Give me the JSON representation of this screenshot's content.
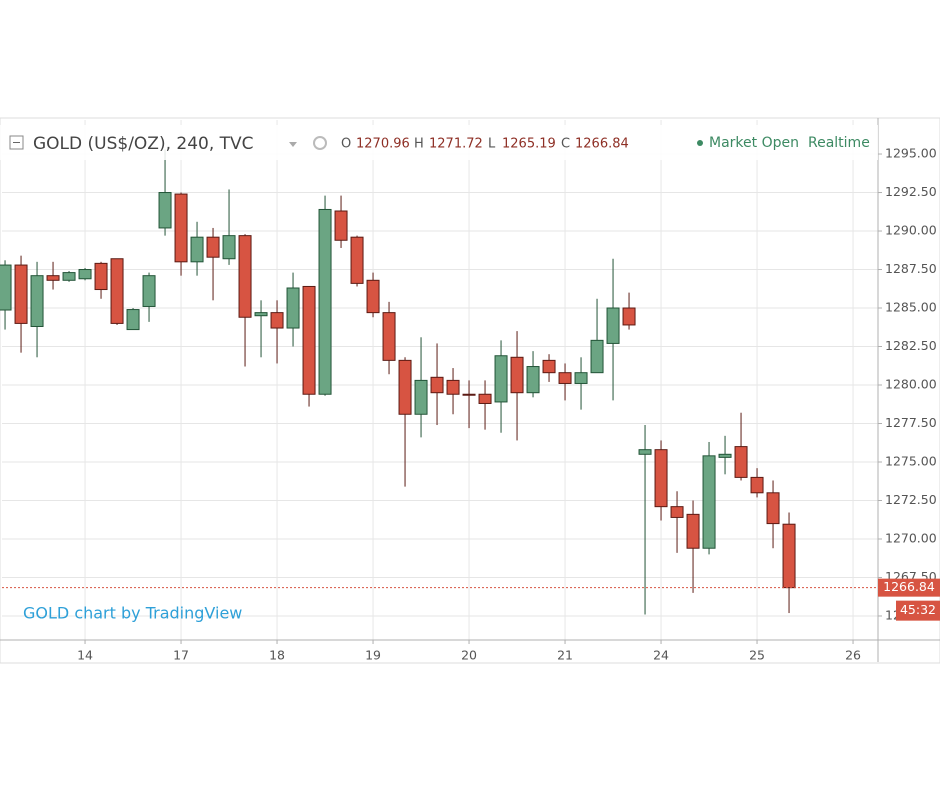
{
  "chart_data": {
    "type": "candlestick",
    "title": "GOLD (US$/OZ), 240, TVC",
    "ohlc_labels": [
      "O",
      "H",
      "L",
      "C"
    ],
    "status": "Market Open",
    "feed": "Realtime",
    "watermark": "GOLD chart by TradingView",
    "countdown": "45:32",
    "up_color": "#6ba583",
    "down_color": "#d75442",
    "grid": true,
    "x": [
      0,
      1,
      2,
      3,
      4,
      5,
      6,
      7,
      8,
      9,
      10,
      11,
      12,
      13,
      14,
      15,
      16,
      17,
      18,
      19,
      20,
      21,
      22,
      23,
      24,
      25,
      26,
      27,
      28,
      29,
      30,
      31,
      32,
      33,
      34,
      35,
      36,
      37,
      38,
      39,
      40,
      41,
      42,
      43,
      44,
      45,
      46,
      47,
      48,
      49
    ],
    "open": [
      1284.87,
      1287.79,
      1283.8,
      1287.1,
      1286.8,
      1286.9,
      1287.9,
      1288.2,
      1283.6,
      1285.1,
      1290.2,
      1292.4,
      1288.0,
      1289.6,
      1288.2,
      1289.7,
      1284.5,
      1284.7,
      1283.7,
      1286.4,
      1279.4,
      1291.3,
      1289.6,
      1286.8,
      1284.7,
      1281.6,
      1278.1,
      1280.5,
      1280.3,
      1279.4,
      1279.4,
      1278.9,
      1281.8,
      1279.5,
      1281.6,
      1280.8,
      1280.1,
      1280.8,
      1282.7,
      1285.0,
      1275.5,
      1275.8,
      1272.1,
      1271.6,
      1269.4,
      1275.3,
      1276.0,
      1274.0,
      1273.0,
      1270.96
    ],
    "high": [
      1288.1,
      1288.4,
      1288.0,
      1288.0,
      1287.4,
      1287.6,
      1288.0,
      1288.2,
      1285.0,
      1287.3,
      1295.3,
      1292.5,
      1290.6,
      1290.2,
      1292.7,
      1289.8,
      1285.5,
      1285.5,
      1287.3,
      1286.4,
      1292.3,
      1292.3,
      1289.7,
      1287.3,
      1285.4,
      1281.8,
      1283.1,
      1282.7,
      1281.1,
      1280.3,
      1280.3,
      1282.9,
      1283.5,
      1282.2,
      1282.0,
      1281.4,
      1281.8,
      1285.6,
      1288.2,
      1286.0,
      1277.4,
      1276.4,
      1273.1,
      1272.5,
      1276.3,
      1276.7,
      1278.2,
      1274.6,
      1273.8,
      1271.72
    ],
    "low": [
      1283.6,
      1282.1,
      1281.8,
      1286.2,
      1286.7,
      1286.8,
      1285.6,
      1283.9,
      1283.6,
      1284.1,
      1289.7,
      1287.1,
      1287.1,
      1285.5,
      1287.8,
      1281.2,
      1281.8,
      1281.4,
      1282.5,
      1278.6,
      1279.3,
      1288.9,
      1286.4,
      1284.4,
      1280.7,
      1273.4,
      1276.6,
      1277.4,
      1278.1,
      1277.2,
      1277.1,
      1276.9,
      1276.4,
      1279.2,
      1280.2,
      1279.0,
      1278.4,
      1280.8,
      1279.0,
      1283.6,
      1265.1,
      1271.2,
      1269.1,
      1266.5,
      1269.0,
      1274.2,
      1273.8,
      1272.7,
      1269.4,
      1265.19
    ],
    "close": [
      1287.79,
      1284.0,
      1287.1,
      1286.8,
      1287.3,
      1287.5,
      1286.2,
      1284.0,
      1284.9,
      1287.1,
      1292.5,
      1288.0,
      1289.6,
      1288.3,
      1289.7,
      1284.4,
      1284.7,
      1283.7,
      1286.3,
      1279.4,
      1291.4,
      1289.4,
      1286.6,
      1284.7,
      1281.6,
      1278.1,
      1280.3,
      1279.5,
      1279.4,
      1279.35,
      1278.8,
      1281.9,
      1279.5,
      1281.2,
      1280.8,
      1280.1,
      1280.8,
      1282.9,
      1285.0,
      1283.9,
      1275.8,
      1272.1,
      1271.4,
      1269.4,
      1275.4,
      1275.5,
      1274.0,
      1273.0,
      1271.0,
      1266.84
    ],
    "xlim": [
      -0.19,
      54.56
    ],
    "xticks": [
      {
        "value": 5,
        "label": "14"
      },
      {
        "value": 11,
        "label": "17"
      },
      {
        "value": 17,
        "label": "18"
      },
      {
        "value": 23,
        "label": "19"
      },
      {
        "value": 29,
        "label": "20"
      },
      {
        "value": 35,
        "label": "21"
      },
      {
        "value": 41,
        "label": "24"
      },
      {
        "value": 47,
        "label": "25"
      },
      {
        "value": 53,
        "label": "26"
      }
    ],
    "ylim": [
      1263.44,
      1297.21
    ],
    "yticks": [
      {
        "value": 1265,
        "label": "1265.00"
      },
      {
        "value": 1267.5,
        "label": "1267.50"
      },
      {
        "value": 1270,
        "label": "1270.00"
      },
      {
        "value": 1272.5,
        "label": "1272.50"
      },
      {
        "value": 1275,
        "label": "1275.00"
      },
      {
        "value": 1277.5,
        "label": "1277.50"
      },
      {
        "value": 1280,
        "label": "1280.00"
      },
      {
        "value": 1282.5,
        "label": "1282.50"
      },
      {
        "value": 1285,
        "label": "1285.00"
      },
      {
        "value": 1287.5,
        "label": "1287.50"
      },
      {
        "value": 1290,
        "label": "1290.00"
      },
      {
        "value": 1292.5,
        "label": "1292.50"
      },
      {
        "value": 1295,
        "label": "1295.00"
      }
    ]
  }
}
